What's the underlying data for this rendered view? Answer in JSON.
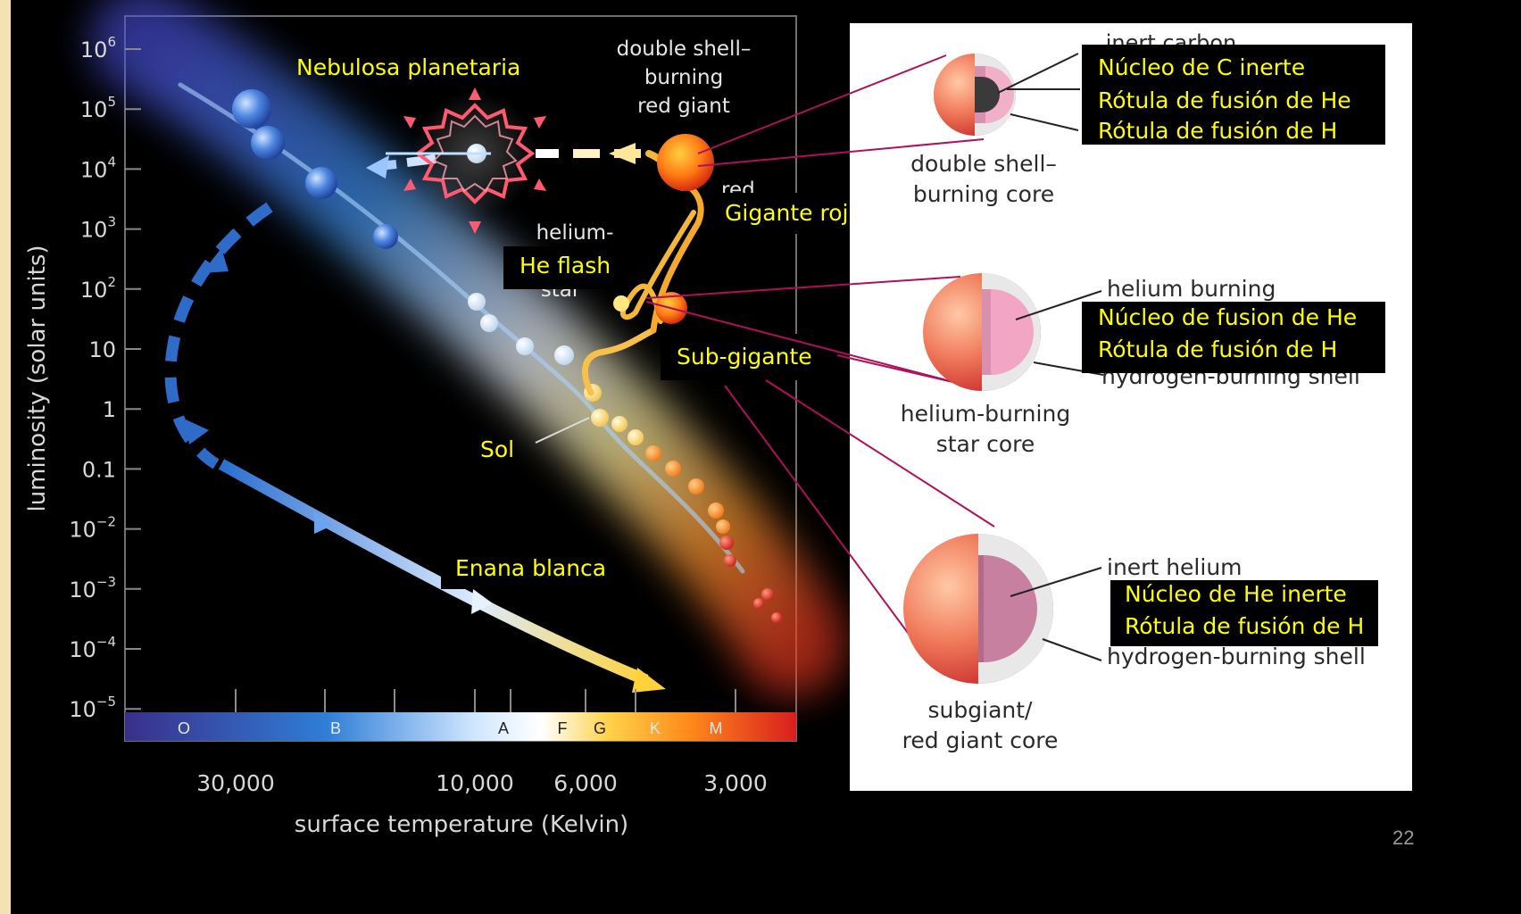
{
  "hr_diagram": {
    "y_axis_label": "luminosity (solar units)",
    "x_axis_label": "surface temperature (Kelvin)",
    "y_ticks": [
      {
        "base": "10",
        "exp": "6"
      },
      {
        "base": "10",
        "exp": "5"
      },
      {
        "base": "10",
        "exp": "4"
      },
      {
        "base": "10",
        "exp": "3"
      },
      {
        "base": "10",
        "exp": "2"
      },
      {
        "base": "10",
        "exp": ""
      },
      {
        "base": "1",
        "exp": ""
      },
      {
        "base": "0.1",
        "exp": ""
      },
      {
        "base": "10",
        "exp": "−2"
      },
      {
        "base": "10",
        "exp": "−3"
      },
      {
        "base": "10",
        "exp": "−4"
      },
      {
        "base": "10",
        "exp": "−5"
      }
    ],
    "x_ticks": [
      "30,000",
      "10,000",
      "6,000",
      "3,000"
    ],
    "spectral_classes": [
      "O",
      "B",
      "A",
      "F",
      "G",
      "K",
      "M"
    ],
    "original_labels": {
      "double_shell_line1": "double shell–",
      "double_shell_line2": "burning",
      "double_shell_line3": "red giant",
      "helium_line1": "helium-",
      "helium_line3": "star",
      "red_fragment": "red"
    }
  },
  "annotations": {
    "nebulosa": "Nebulosa planetaria",
    "gigante_roja": "Gigante roja",
    "he_flash": "He flash",
    "sub_gigante": "Sub-gigante",
    "sol": "Sol",
    "enana_blanca": "Enana blanca"
  },
  "cores": {
    "double_shell": {
      "caption_line1": "double shell–",
      "caption_line2": "burning core",
      "orig_label": "inert carbon",
      "labels": [
        "Núcleo de C inerte",
        "Rótula de fusión de He",
        "Rótula de fusión de H"
      ]
    },
    "helium_burning": {
      "caption_line1": "helium-burning",
      "caption_line2": "star core",
      "orig_label_top": "helium burning",
      "orig_label_bottom": "hydrogen-burning shell",
      "labels": [
        "Núcleo de fusion de He",
        "Rótula de fusión de H"
      ]
    },
    "subgiant": {
      "caption_line1": "subgiant/",
      "caption_line2": "red giant core",
      "orig_label_top": "inert helium",
      "orig_label_bottom": "hydrogen-burning shell",
      "labels": [
        "Núcleo de He inerte",
        "Rótula de fusión de H"
      ]
    }
  },
  "slide_number": "22"
}
